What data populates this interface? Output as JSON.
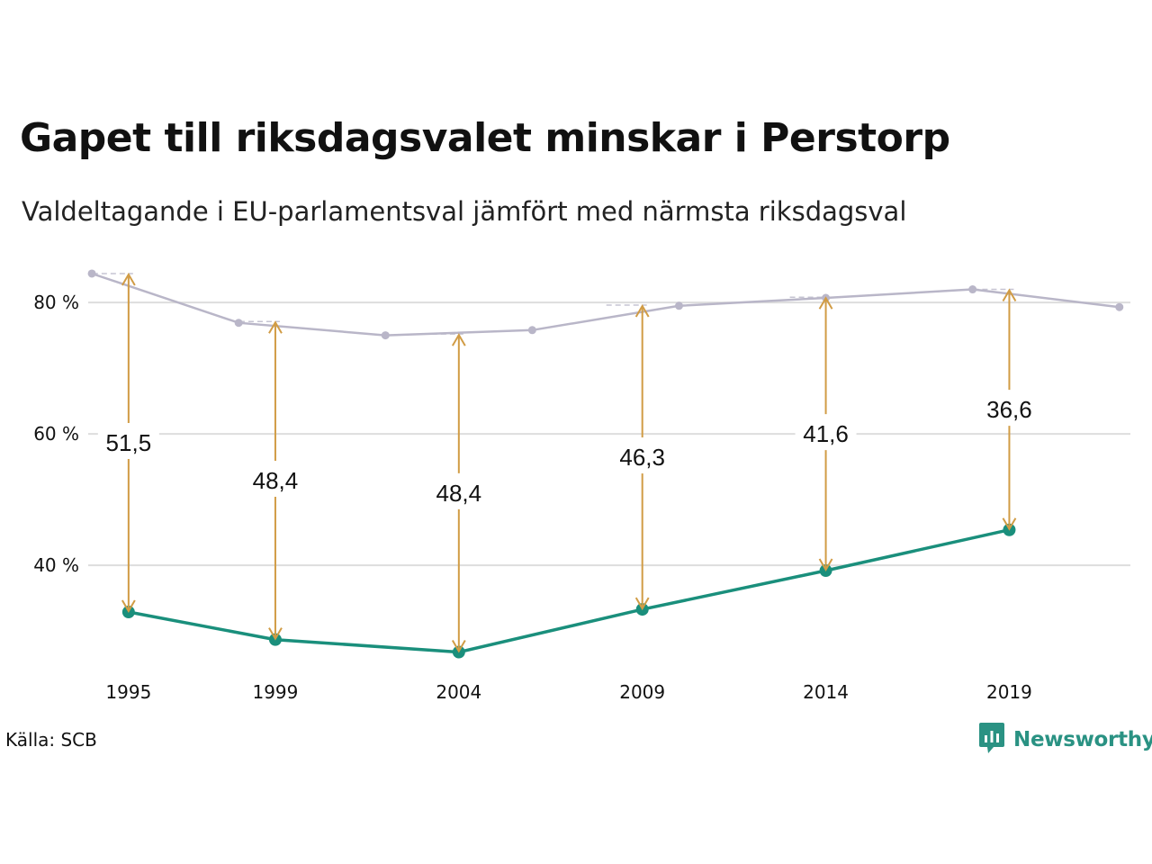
{
  "title": "Gapet till riksdagsvalet minskar i Perstorp",
  "subtitle": "Valdeltagande i EU-parlamentsval jämfört med närmsta riksdagsval",
  "source": "Källa: SCB",
  "brand": "Newsworthy",
  "colors": {
    "eu_line": "#1a8f7c",
    "riksdag_line": "#b9b6c8",
    "gap_arrow": "#d19c45",
    "grid": "#dddddd",
    "brand": "#2a9283"
  },
  "icons": {
    "brand_logo": "chart-bubble-icon"
  },
  "chart_data": {
    "type": "line",
    "title": "Gapet till riksdagsvalet minskar i Perstorp",
    "subtitle": "Valdeltagande i EU-parlamentsval jämfört med närmsta riksdagsval",
    "xlabel": "",
    "ylabel": "",
    "x_ticks": [
      "1995",
      "1999",
      "2004",
      "2009",
      "2014",
      "2019"
    ],
    "y_ticks": [
      {
        "value": 40,
        "label": "40 %"
      },
      {
        "value": 60,
        "label": "60 %"
      },
      {
        "value": 80,
        "label": "80 %"
      }
    ],
    "ylim": [
      24,
      87
    ],
    "xlim": [
      1993.9,
      2022.3
    ],
    "grid": true,
    "legend": "none",
    "series": [
      {
        "role": "eu",
        "x": [
          1995,
          1999,
          2004,
          2009,
          2014,
          2019
        ],
        "y": [
          32.9,
          28.7,
          26.8,
          33.3,
          39.2,
          45.4
        ]
      },
      {
        "role": "riksdag",
        "x": [
          1994,
          1998,
          2002,
          2006,
          2010,
          2014,
          2018,
          2022
        ],
        "y": [
          84.4,
          76.9,
          75.0,
          75.8,
          79.5,
          80.7,
          82.0,
          79.3
        ]
      }
    ],
    "gaps": [
      {
        "x": 1995,
        "from": 32.9,
        "to": 84.4,
        "label": "51,5"
      },
      {
        "x": 1999,
        "from": 28.7,
        "to": 77.1,
        "label": "48,4"
      },
      {
        "x": 2004,
        "from": 26.8,
        "to": 75.2,
        "label": "48,4"
      },
      {
        "x": 2009,
        "from": 33.3,
        "to": 79.6,
        "label": "46,3"
      },
      {
        "x": 2014,
        "from": 39.2,
        "to": 80.8,
        "label": "41,6"
      },
      {
        "x": 2019,
        "from": 45.4,
        "to": 82.0,
        "label": "36,6"
      }
    ]
  }
}
